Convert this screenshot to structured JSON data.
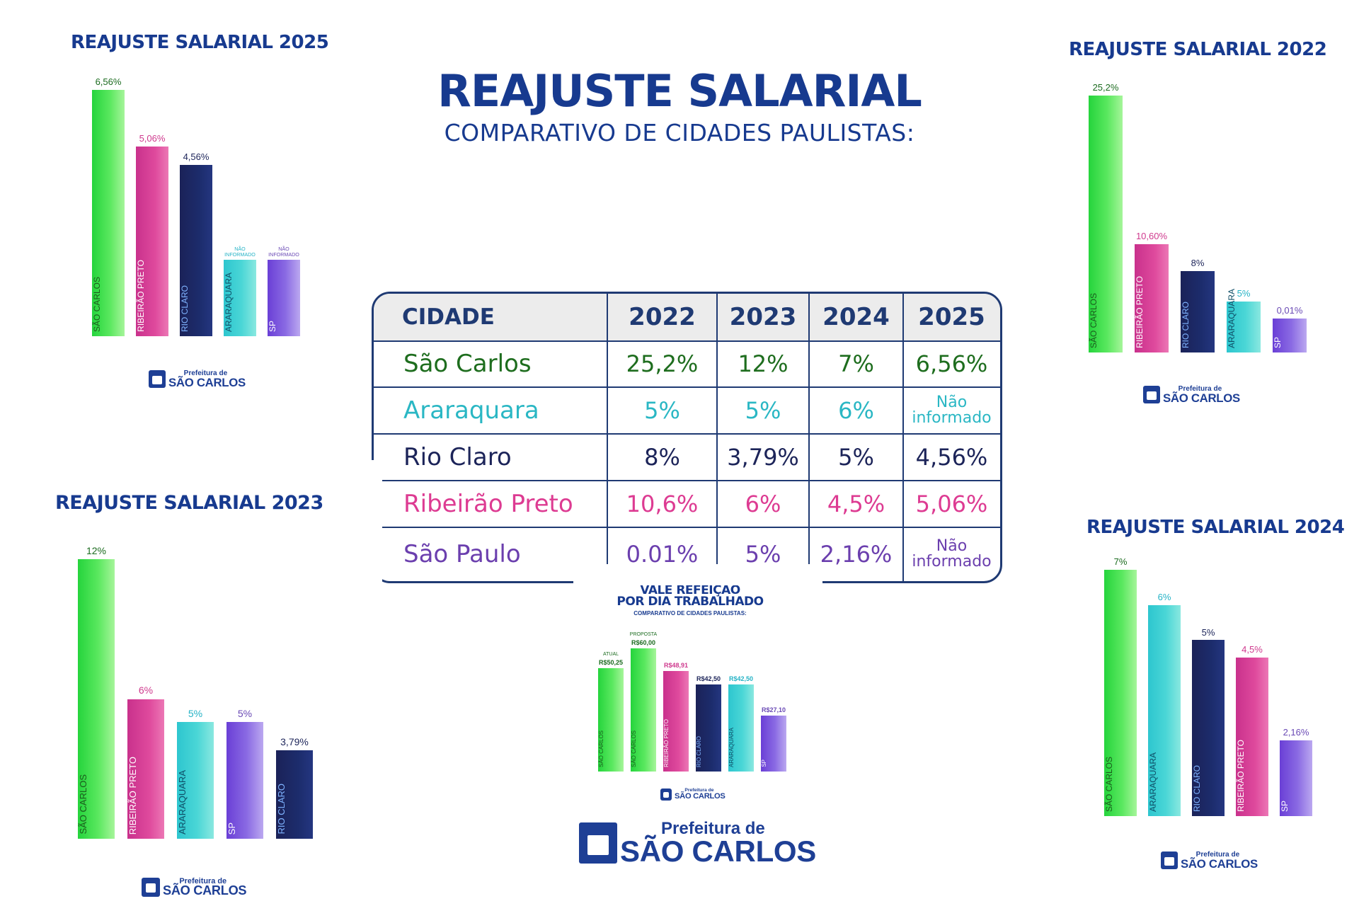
{
  "main_title": "REAJUSTE SALARIAL",
  "main_subtitle": "COMPARATIVO DE CIDADES PAULISTAS:",
  "logo": {
    "line1": "Prefeitura de",
    "line2": "SÃO CARLOS"
  },
  "colors": {
    "title_blue": "#173a8f",
    "green": "#2fd94b",
    "pink": "#d1388f",
    "navy": "#1c2459",
    "cyan": "#2cc9cf",
    "purple": "#7a55d8"
  },
  "table": {
    "headers": [
      "CIDADE",
      "2022",
      "2023",
      "2024",
      "2025"
    ],
    "rows": [
      {
        "city": "São Carlos",
        "color": "#1e6d1e",
        "values": [
          "25,2%",
          "12%",
          "7%",
          "6,56%"
        ]
      },
      {
        "city": "Araraquara",
        "color": "#2ab7c4",
        "values": [
          "5%",
          "5%",
          "6%",
          "Não informado"
        ]
      },
      {
        "city": "Rio Claro",
        "color": "#1c2459",
        "values": [
          "8%",
          "3,79%",
          "5%",
          "4,56%"
        ]
      },
      {
        "city": "Ribeirão Preto",
        "color": "#dd3b92",
        "values": [
          "10,6%",
          "6%",
          "4,5%",
          "5,06%"
        ]
      },
      {
        "city": "São Paulo",
        "color": "#6b3fae",
        "values": [
          "0.01%",
          "5%",
          "2,16%",
          "Não informado"
        ]
      }
    ]
  },
  "chart_data": [
    {
      "type": "bar",
      "title": "REAJUSTE SALARIAL 2025",
      "categories": [
        "SÃO CARLOS",
        "RIBEIRÃO PRETO",
        "RIO CLARO",
        "ARARAQUARA",
        "SP"
      ],
      "values": [
        6.56,
        5.06,
        4.56,
        null,
        null
      ],
      "labels": [
        "6,56%",
        "5,06%",
        "4,56%",
        "NÃO INFORMADO",
        "NÃO INFORMADO"
      ],
      "colors": [
        "green",
        "pink",
        "navy",
        "cyan",
        "purple"
      ]
    },
    {
      "type": "bar",
      "title": "REAJUSTE SALARIAL 2022",
      "categories": [
        "SÃO CARLOS",
        "RIBEIRÃO PRETO",
        "RIO CLARO",
        "ARARAQUARA",
        "SP"
      ],
      "values": [
        25.2,
        10.6,
        8,
        5,
        0.01
      ],
      "labels": [
        "25,2%",
        "10,60%",
        "8%",
        "5%",
        "0,01%"
      ],
      "colors": [
        "green",
        "pink",
        "navy",
        "cyan",
        "purple"
      ]
    },
    {
      "type": "bar",
      "title": "REAJUSTE SALARIAL 2023",
      "categories": [
        "SÃO CARLOS",
        "RIBEIRÃO PRETO",
        "ARARAQUARA",
        "SP",
        "RIO CLARO"
      ],
      "values": [
        12,
        6,
        5,
        5,
        3.79
      ],
      "labels": [
        "12%",
        "6%",
        "5%",
        "5%",
        "3,79%"
      ],
      "colors": [
        "green",
        "pink",
        "cyan",
        "purple",
        "navy"
      ]
    },
    {
      "type": "bar",
      "title": "REAJUSTE SALARIAL 2024",
      "categories": [
        "SÃO CARLOS",
        "ARARAQUARA",
        "RIO CLARO",
        "RIBEIRÃO PRETO",
        "SP"
      ],
      "values": [
        7,
        6,
        5,
        4.5,
        2.16
      ],
      "labels": [
        "7%",
        "6%",
        "5%",
        "4,5%",
        "2,16%"
      ],
      "colors": [
        "green",
        "cyan",
        "navy",
        "pink",
        "purple"
      ]
    },
    {
      "type": "bar",
      "title": "VALE REFEIÇÃO\nPOR DIA TRABALHADO",
      "subtitle": "COMPARATIVO DE CIDADES PAULISTAS:",
      "categories": [
        "SÃO CARLOS",
        "SÃO CARLOS",
        "RIBEIRÃO PRETO",
        "RIO CLARO",
        "ARARAQUARA",
        "SP"
      ],
      "values": [
        50.25,
        60.0,
        48.91,
        42.5,
        42.5,
        27.1
      ],
      "labels": [
        "R$50,25",
        "R$60,00",
        "R$48,91",
        "R$42,50",
        "R$42,50",
        "R$27,10"
      ],
      "notes": [
        "ATUAL",
        "PROPOSTA",
        "",
        "",
        "",
        ""
      ],
      "colors": [
        "green",
        "green",
        "pink",
        "navy",
        "cyan",
        "purple"
      ]
    }
  ]
}
